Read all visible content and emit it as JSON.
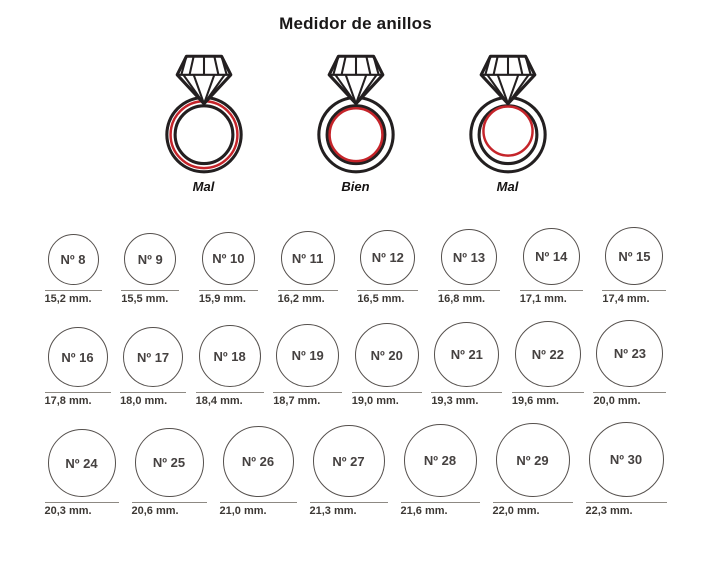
{
  "title": "Medidor de anillos",
  "fit_examples": [
    {
      "label": "Mal",
      "fit": "circle-larger-than-ring"
    },
    {
      "label": "Bien",
      "fit": "circle-matches-ring"
    },
    {
      "label": "Mal",
      "fit": "circle-smaller-than-ring"
    }
  ],
  "colors": {
    "ring_outline": "#231f20",
    "measure_circle": "#c5242a"
  },
  "size_chart": {
    "unit": "mm",
    "rows": [
      [
        {
          "size": "Nº 8",
          "diameter_mm": 15.2,
          "diameter_label": "15,2 mm."
        },
        {
          "size": "Nº 9",
          "diameter_mm": 15.5,
          "diameter_label": "15,5 mm."
        },
        {
          "size": "Nº 10",
          "diameter_mm": 15.9,
          "diameter_label": "15,9 mm."
        },
        {
          "size": "Nº 11",
          "diameter_mm": 16.2,
          "diameter_label": "16,2 mm."
        },
        {
          "size": "Nº 12",
          "diameter_mm": 16.5,
          "diameter_label": "16,5 mm."
        },
        {
          "size": "Nº 13",
          "diameter_mm": 16.8,
          "diameter_label": "16,8 mm."
        },
        {
          "size": "Nº 14",
          "diameter_mm": 17.1,
          "diameter_label": "17,1 mm."
        },
        {
          "size": "Nº 15",
          "diameter_mm": 17.4,
          "diameter_label": "17,4 mm."
        }
      ],
      [
        {
          "size": "Nº 16",
          "diameter_mm": 17.8,
          "diameter_label": "17,8 mm."
        },
        {
          "size": "Nº 17",
          "diameter_mm": 18.0,
          "diameter_label": "18,0 mm."
        },
        {
          "size": "Nº 18",
          "diameter_mm": 18.4,
          "diameter_label": "18,4 mm."
        },
        {
          "size": "Nº 19",
          "diameter_mm": 18.7,
          "diameter_label": "18,7 mm."
        },
        {
          "size": "Nº 20",
          "diameter_mm": 19.0,
          "diameter_label": "19,0 mm."
        },
        {
          "size": "Nº 21",
          "diameter_mm": 19.3,
          "diameter_label": "19,3 mm."
        },
        {
          "size": "Nº 22",
          "diameter_mm": 19.6,
          "diameter_label": "19,6 mm."
        },
        {
          "size": "Nº 23",
          "diameter_mm": 20.0,
          "diameter_label": "20,0 mm."
        }
      ],
      [
        {
          "size": "Nº 24",
          "diameter_mm": 20.3,
          "diameter_label": "20,3 mm."
        },
        {
          "size": "Nº 25",
          "diameter_mm": 20.6,
          "diameter_label": "20,6 mm."
        },
        {
          "size": "Nº 26",
          "diameter_mm": 21.0,
          "diameter_label": "21,0 mm."
        },
        {
          "size": "Nº 27",
          "diameter_mm": 21.3,
          "diameter_label": "21,3 mm."
        },
        {
          "size": "Nº 28",
          "diameter_mm": 21.6,
          "diameter_label": "21,6 mm."
        },
        {
          "size": "Nº 29",
          "diameter_mm": 22.0,
          "diameter_label": "22,0 mm."
        },
        {
          "size": "Nº 30",
          "diameter_mm": 22.3,
          "diameter_label": "22,3 mm."
        }
      ]
    ]
  }
}
